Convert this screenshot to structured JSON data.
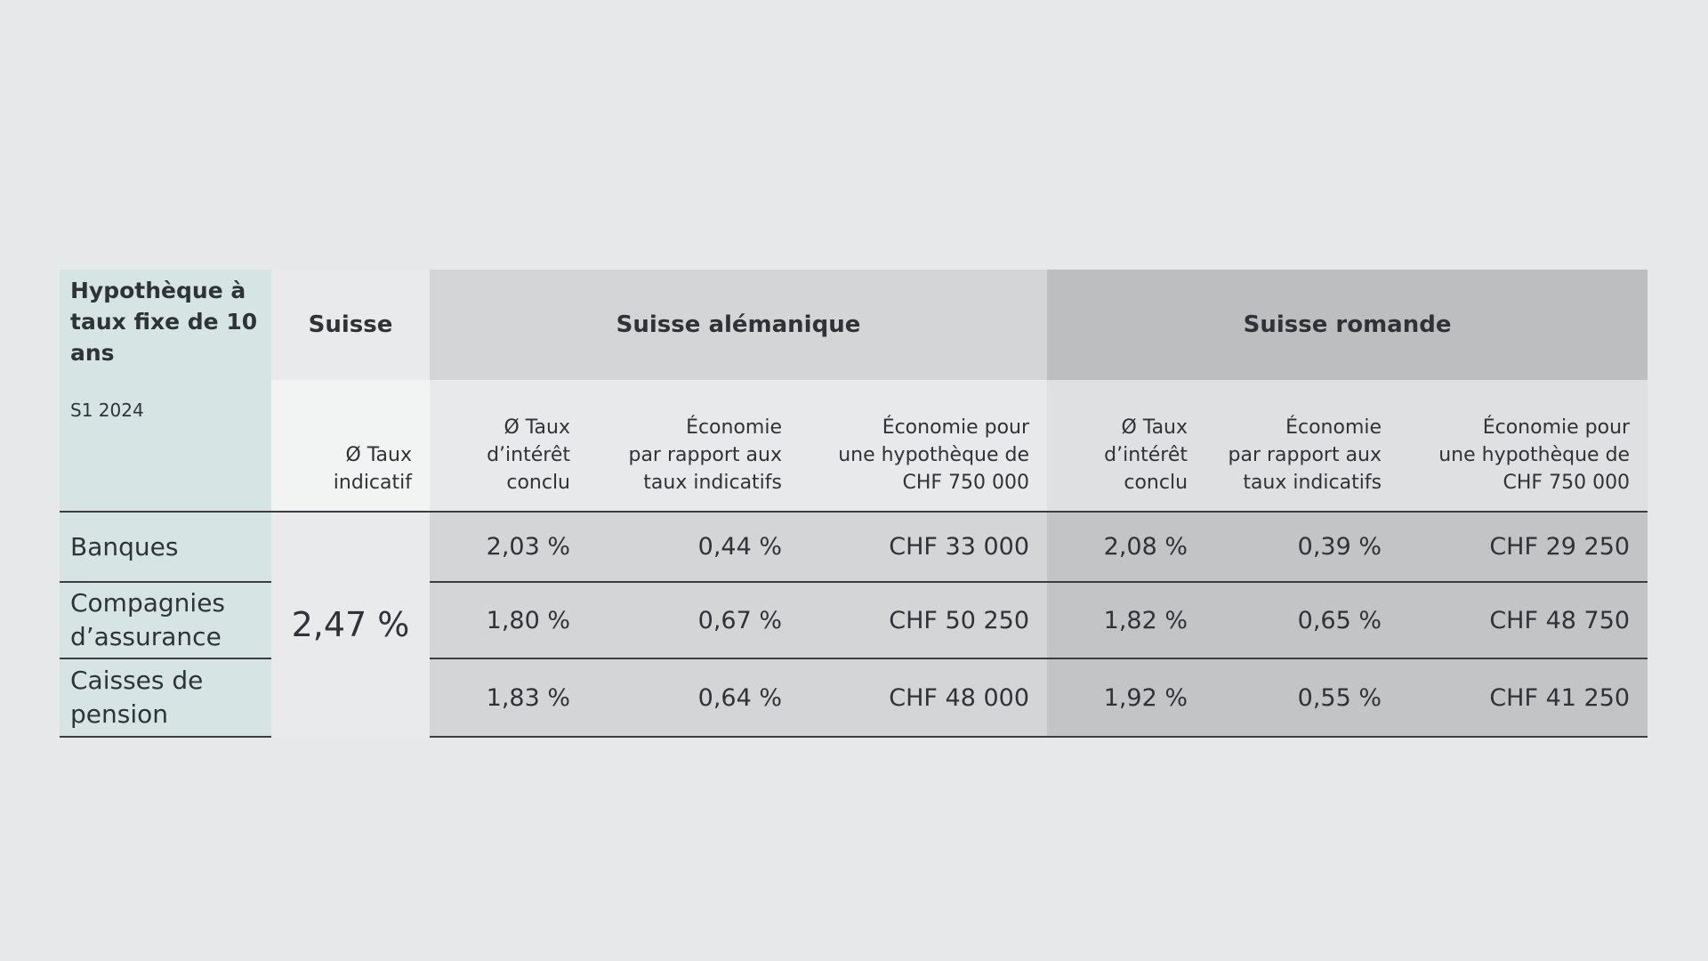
{
  "table": {
    "header": {
      "title": "Hypothèque à taux fixe de 10 ans",
      "period": "S1 2024",
      "groups": [
        "Suisse",
        "Suisse alémanique",
        "Suisse romande"
      ]
    },
    "subheaders": {
      "suisse": "Ø Taux\nindicatif",
      "rate": "Ø Taux\nd’intérêt\nconclu",
      "saving": "Économie\npar rapport aux\ntaux indicatifs",
      "saving_chf": "Économie pour\nune hypothèque de\nCHF 750 000"
    },
    "suisse_value": "2,47 %",
    "rows": [
      {
        "label": "Banques",
        "ale": [
          "2,03 %",
          "0,44 %",
          "CHF 33 000"
        ],
        "rom": [
          "2,08 %",
          "0,39 %",
          "CHF 29 250"
        ]
      },
      {
        "label": "Compagnies d’assurance",
        "ale": [
          "1,80 %",
          "0,67 %",
          "CHF 50 250"
        ],
        "rom": [
          "1,82 %",
          "0,65 %",
          "CHF 48 750"
        ]
      },
      {
        "label": "Caisses de pension",
        "ale": [
          "1,83 %",
          "0,64 %",
          "CHF 48 000"
        ],
        "rom": [
          "1,92 %",
          "0,55 %",
          "CHF 41 250"
        ]
      }
    ]
  }
}
